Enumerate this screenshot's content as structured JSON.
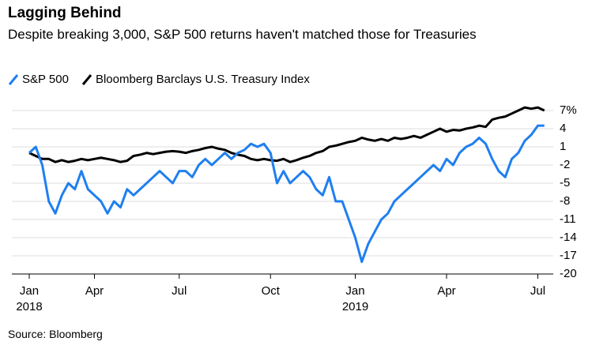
{
  "chart_data": {
    "type": "line",
    "title": "Lagging Behind",
    "subtitle": "Despite breaking 3,000, S&P 500 returns haven't matched those for Treasuries",
    "source": "Source: Bloomberg",
    "categories": [
      "Jan 2018",
      null,
      null,
      null,
      null,
      null,
      null,
      null,
      null,
      null,
      "Apr",
      null,
      null,
      null,
      null,
      null,
      null,
      null,
      null,
      null,
      null,
      null,
      null,
      "Jul",
      null,
      null,
      null,
      null,
      null,
      null,
      null,
      null,
      null,
      null,
      null,
      null,
      null,
      "Oct",
      null,
      null,
      null,
      null,
      null,
      null,
      null,
      null,
      null,
      null,
      null,
      null,
      "Jan 2019",
      null,
      null,
      null,
      null,
      null,
      null,
      null,
      null,
      null,
      null,
      null,
      null,
      null,
      "Apr",
      null,
      null,
      null,
      null,
      null,
      null,
      null,
      null,
      null,
      null,
      null,
      null,
      null,
      "Jul",
      null
    ],
    "series": [
      {
        "name": "S&P 500",
        "color": "#1f7ff0",
        "values": [
          0,
          1,
          -2,
          -8,
          -10,
          -7,
          -5,
          -6,
          -3,
          -6,
          -7,
          -8,
          -10,
          -8,
          -9,
          -6,
          -7,
          -6,
          -5,
          -4,
          -3,
          -4,
          -5,
          -3,
          -3,
          -4,
          -2,
          -1,
          -2,
          -1,
          0,
          -1,
          0,
          0.5,
          1.5,
          1,
          1.5,
          0,
          -5,
          -3,
          -5,
          -4,
          -3,
          -4,
          -6,
          -7,
          -4,
          -8,
          -8,
          -11,
          -14,
          -18,
          -15,
          -13,
          -11,
          -10,
          -8,
          -7,
          -6,
          -5,
          -4,
          -3,
          -2,
          -3,
          -1,
          -2,
          0,
          1,
          1.5,
          2.5,
          1.5,
          -1,
          -3,
          -4,
          -1,
          0,
          2,
          3,
          4.5,
          4.5
        ]
      },
      {
        "name": "Bloomberg Barclays U.S. Treasury Index",
        "color": "#000000",
        "values": [
          0,
          -0.5,
          -1,
          -1,
          -1.5,
          -1.2,
          -1.5,
          -1.3,
          -1,
          -1.2,
          -1,
          -0.8,
          -1,
          -1.2,
          -1.5,
          -1.3,
          -0.5,
          -0.3,
          0,
          -0.2,
          0,
          0.2,
          0.3,
          0.2,
          0,
          0.3,
          0.5,
          0.8,
          1,
          0.7,
          0.5,
          0,
          -0.3,
          -0.5,
          -1,
          -1.2,
          -1,
          -1.2,
          -1.3,
          -1,
          -1.5,
          -1.2,
          -0.8,
          -0.5,
          0,
          0.3,
          1,
          1.2,
          1.5,
          1.8,
          2,
          2.5,
          2.2,
          2,
          2.3,
          2,
          2.5,
          2.3,
          2.5,
          2.8,
          2.5,
          3,
          3.5,
          4,
          3.5,
          3.8,
          3.7,
          4,
          4.2,
          4.5,
          4.3,
          5.5,
          5.8,
          6,
          6.5,
          7,
          7.5,
          7.3,
          7.5,
          7
        ]
      }
    ],
    "ylim": [
      -20,
      8.3
    ],
    "yticks": [
      {
        "value": 7,
        "label": "7%"
      },
      4,
      1,
      -2,
      -5,
      -8,
      -11,
      -14,
      -17,
      -20
    ],
    "grid": true
  }
}
